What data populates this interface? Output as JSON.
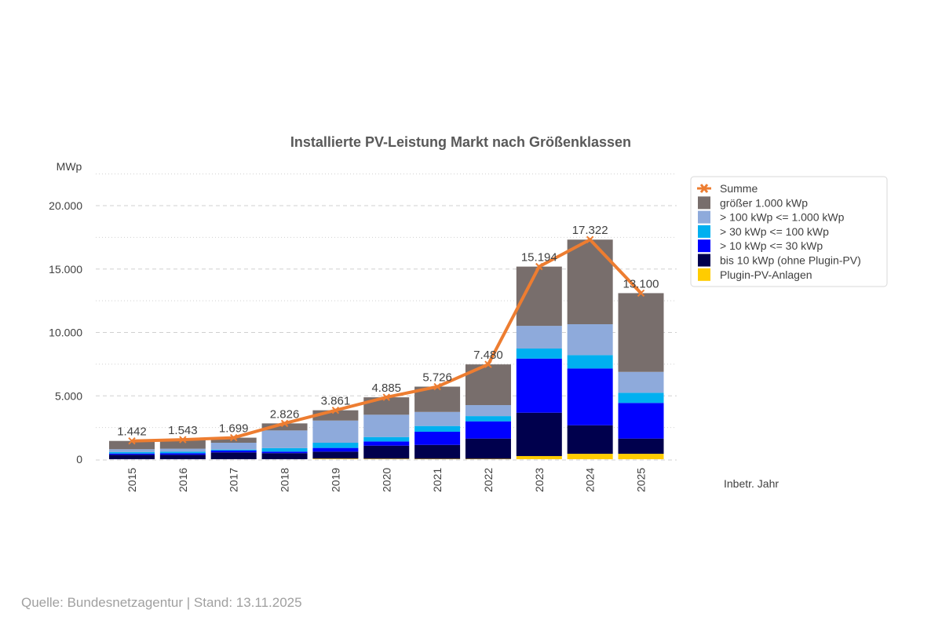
{
  "chart_data": {
    "type": "bar",
    "stacked": true,
    "title": "Installierte PV-Leistung Markt nach Größenklassen",
    "ylabel": "MWp",
    "xlabel": "Inbetr. Jahr",
    "ylim": [
      0,
      20000
    ],
    "yticks": [
      0,
      5000,
      10000,
      15000,
      20000
    ],
    "ytick_labels": [
      "0",
      "5.000",
      "10.000",
      "15.000",
      "20.000"
    ],
    "grid": true,
    "legend_position": "right",
    "categories": [
      "2015",
      "2016",
      "2017",
      "2018",
      "2019",
      "2020",
      "2021",
      "2022",
      "2023",
      "2024",
      "2025"
    ],
    "series": [
      {
        "name": "Plugin-PV-Anlagen",
        "color": "#ffcc00",
        "values": [
          0,
          0,
          0,
          0,
          50,
          40,
          30,
          30,
          250,
          430,
          430
        ]
      },
      {
        "name": "bis 10 kWp (ohne Plugin-PV)",
        "color": "#00004d",
        "values": [
          350,
          350,
          540,
          480,
          550,
          1030,
          1100,
          1600,
          3420,
          2250,
          1200
        ]
      },
      {
        "name": "> 10 kWp <= 30 kWp",
        "color": "#0000ff",
        "values": [
          100,
          120,
          140,
          120,
          290,
          330,
          1040,
          1360,
          4270,
          4480,
          2810
        ]
      },
      {
        "name": "> 30 kWp <= 100 kWp",
        "color": "#00b0f0",
        "values": [
          110,
          120,
          80,
          280,
          410,
          350,
          450,
          410,
          790,
          1050,
          800
        ]
      },
      {
        "name": "> 100 kWp <= 1.000 kWp",
        "color": "#8eaadb",
        "values": [
          230,
          240,
          540,
          1390,
          1750,
          1760,
          1110,
          870,
          1790,
          2440,
          1650
        ]
      },
      {
        "name": "größer 1.000 kWp",
        "color": "#786e6c",
        "values": [
          652,
          713,
          399,
          556,
          811,
          1375,
          1996,
          3210,
          4674,
          6672,
          6210
        ]
      }
    ],
    "line": {
      "name": "Summe",
      "color": "#ed7d31",
      "values": [
        1442,
        1543,
        1699,
        2826,
        3861,
        4885,
        5726,
        7480,
        15194,
        17322,
        13100
      ],
      "labels": [
        "1.442",
        "1.543",
        "1.699",
        "2.826",
        "3.861",
        "4.885",
        "5.726",
        "7.480",
        "15.194",
        "17.322",
        "13.100"
      ]
    },
    "legend_order": [
      "Summe",
      "größer 1.000 kWp",
      "> 100 kWp <= 1.000 kWp",
      "> 30 kWp <= 100 kWp",
      "> 10 kWp <= 30 kWp",
      "bis 10 kWp (ohne Plugin-PV)",
      "Plugin-PV-Anlagen"
    ]
  },
  "footer": "Quelle: Bundesnetzagentur | Stand: 13.11.2025"
}
